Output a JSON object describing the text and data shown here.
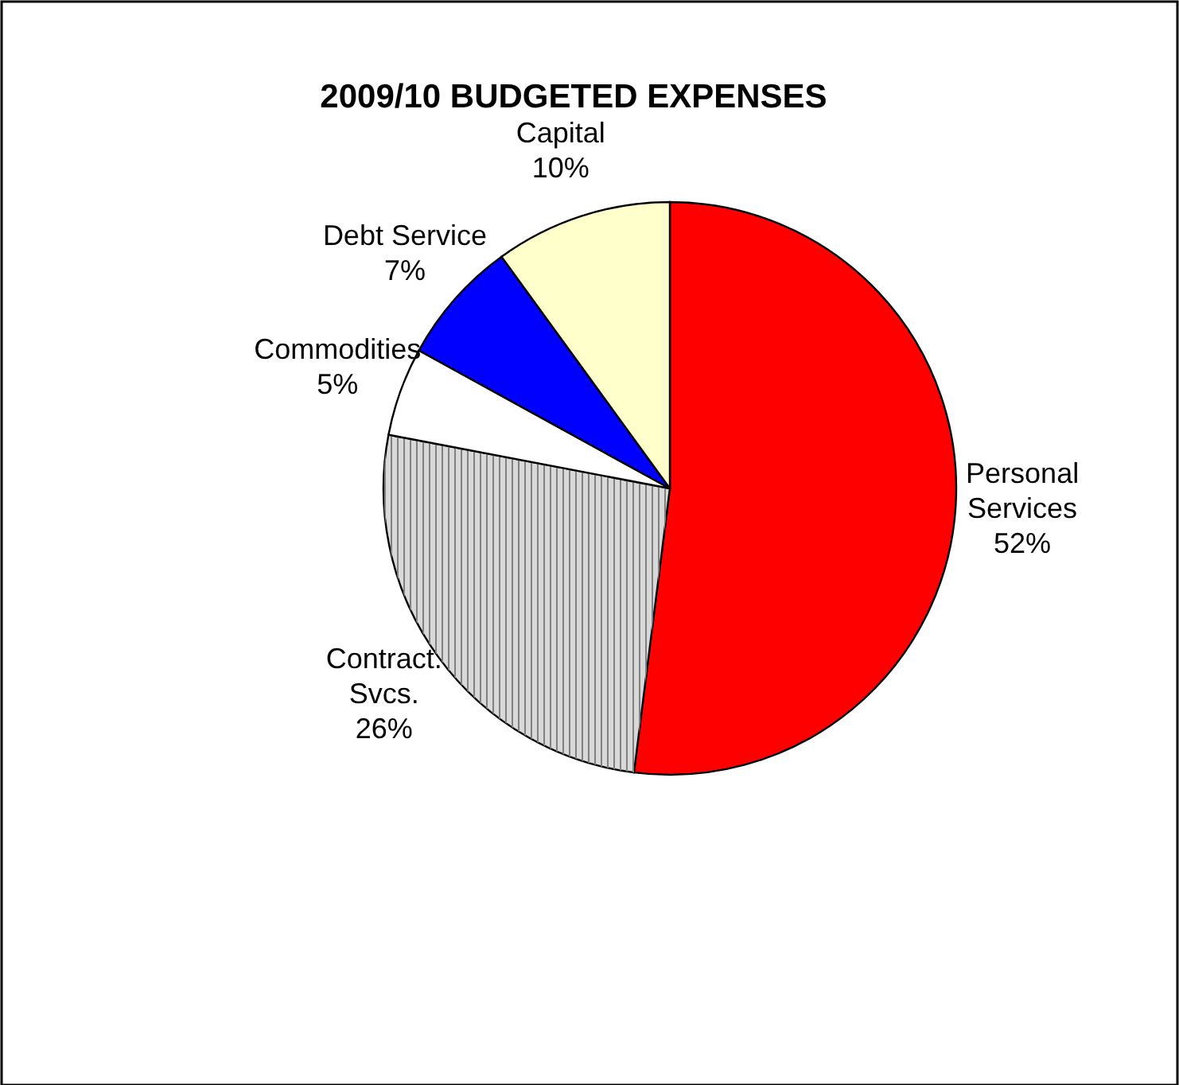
{
  "chart_data": {
    "type": "pie",
    "title": "2009/10 BUDGETED EXPENSES",
    "categories": [
      "Personal Services",
      "Contract. Svcs.",
      "Commodities",
      "Debt Service",
      "Capital"
    ],
    "values": [
      52,
      26,
      5,
      7,
      10
    ],
    "colors": [
      "#ff0000",
      "#d9d9d9",
      "#ffffff",
      "#0000ff",
      "#ffffcc"
    ],
    "value_labels": [
      "52%",
      "26%",
      "5%",
      "7%",
      "10%"
    ],
    "legend": false
  }
}
